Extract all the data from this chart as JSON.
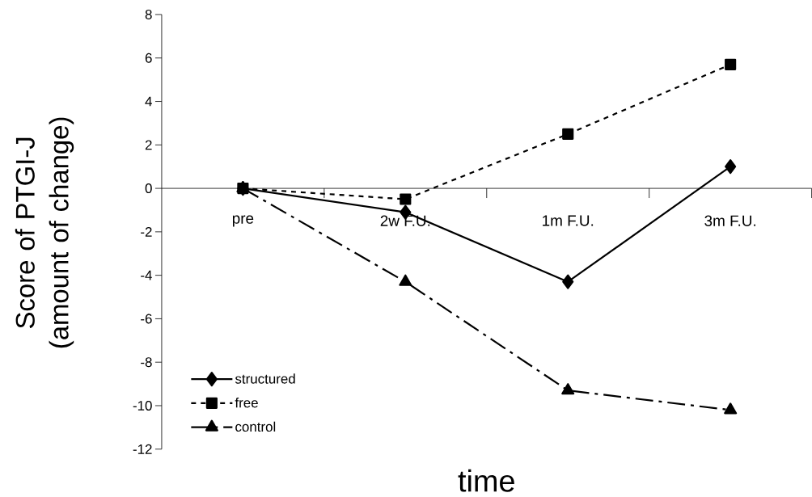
{
  "chart_data": {
    "type": "line",
    "categories": [
      "pre",
      "2w F.U.",
      "1m F.U.",
      "3m F.U."
    ],
    "series": [
      {
        "name": "structured",
        "color": "#000000",
        "marker": "diamond",
        "line_style": "solid",
        "values": [
          0,
          -1.1,
          -4.3,
          1.0
        ]
      },
      {
        "name": "free",
        "color": "#000000",
        "marker": "square",
        "line_style": "dotted",
        "values": [
          0,
          -0.5,
          2.5,
          5.7
        ]
      },
      {
        "name": "control",
        "color": "#000000",
        "marker": "triangle",
        "line_style": "dashdot",
        "values": [
          0,
          -4.3,
          -9.3,
          -10.2
        ]
      }
    ],
    "xlabel": "time",
    "ylabel": "Score of PTGI-J\n(amount of change)",
    "ylim": [
      -12,
      8
    ],
    "yticks": [
      -12,
      -10,
      -8,
      -6,
      -4,
      -2,
      0,
      2,
      4,
      6,
      8
    ],
    "legend": "bottom left",
    "grid": false
  }
}
